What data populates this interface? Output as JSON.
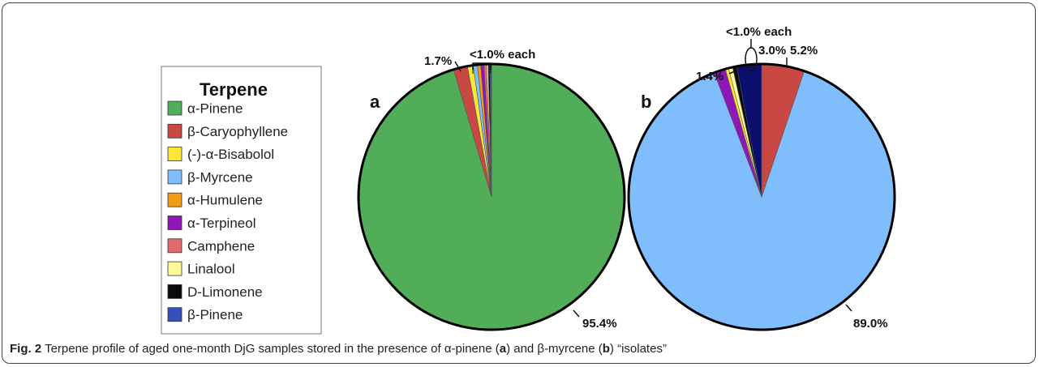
{
  "legend": {
    "title": "Terpene",
    "items": [
      {
        "label": "α-Pinene",
        "color": "#52ad58"
      },
      {
        "label": "β-Caryophyllene",
        "color": "#c94843"
      },
      {
        "label": "(-)-α-Bisabolol",
        "color": "#f8e83a"
      },
      {
        "label": "β-Myrcene",
        "color": "#80bdfc"
      },
      {
        "label": "α-Humulene",
        "color": "#f39a16"
      },
      {
        "label": "α-Terpineol",
        "color": "#8f17b8"
      },
      {
        "label": "Camphene",
        "color": "#e36a6a"
      },
      {
        "label": "Linalool",
        "color": "#fdfa99"
      },
      {
        "label": "D-Limonene",
        "color": "#0b0b0b"
      },
      {
        "label": "β-Pinene",
        "color": "#3550b8"
      }
    ]
  },
  "chart_data": [
    {
      "type": "pie",
      "panel": "a",
      "slices": [
        {
          "name": "α-Pinene",
          "value": 95.4,
          "color": "#52ad58"
        },
        {
          "name": "β-Caryophyllene",
          "value": 1.7,
          "color": "#c94843"
        },
        {
          "name": "(-)-α-Bisabolol",
          "value": 0.7,
          "color": "#f8e83a"
        },
        {
          "name": "β-Myrcene",
          "value": 0.5,
          "color": "#80bdfc"
        },
        {
          "name": "α-Humulene",
          "value": 0.4,
          "color": "#f39a16"
        },
        {
          "name": "α-Terpineol",
          "value": 0.4,
          "color": "#8f17b8"
        },
        {
          "name": "Camphene",
          "value": 0.3,
          "color": "#e36a6a"
        },
        {
          "name": "Linalool",
          "value": 0.2,
          "color": "#fdfa99"
        },
        {
          "name": "D-Limonene",
          "value": 0.2,
          "color": "#0b0b0b"
        },
        {
          "name": "β-Pinene",
          "value": 0.2,
          "color": "#3550b8"
        }
      ],
      "labels": [
        "95.4%",
        "1.7%",
        "<1.0% each"
      ]
    },
    {
      "type": "pie",
      "panel": "b",
      "slices": [
        {
          "name": "β-Caryophyllene",
          "value": 5.2,
          "color": "#c94843"
        },
        {
          "name": "β-Myrcene",
          "value": 89.0,
          "color": "#80bdfc"
        },
        {
          "name": "α-Terpineol",
          "value": 1.4,
          "color": "#8f17b8"
        },
        {
          "name": "(-)-α-Bisabolol",
          "value": 0.4,
          "color": "#f8e83a"
        },
        {
          "name": "Linalool",
          "value": 0.5,
          "color": "#fdfa99"
        },
        {
          "name": "D-Limonene",
          "value": 0.5,
          "color": "#0b0b0b"
        },
        {
          "name": "β-Pinene",
          "value": 3.0,
          "color": "#0a0f6e"
        }
      ],
      "labels": [
        "89.0%",
        "1.4%",
        "<1.0% each",
        "3.0%",
        "5.2%"
      ]
    }
  ],
  "caption": {
    "prefix": "Fig. 2",
    "text": " Terpene profile of aged one-month DjG samples stored in the presence of α-pinene (",
    "a": "a",
    "mid": ") and β-myrcene (",
    "b": "b",
    "end": ") “isolates”"
  }
}
